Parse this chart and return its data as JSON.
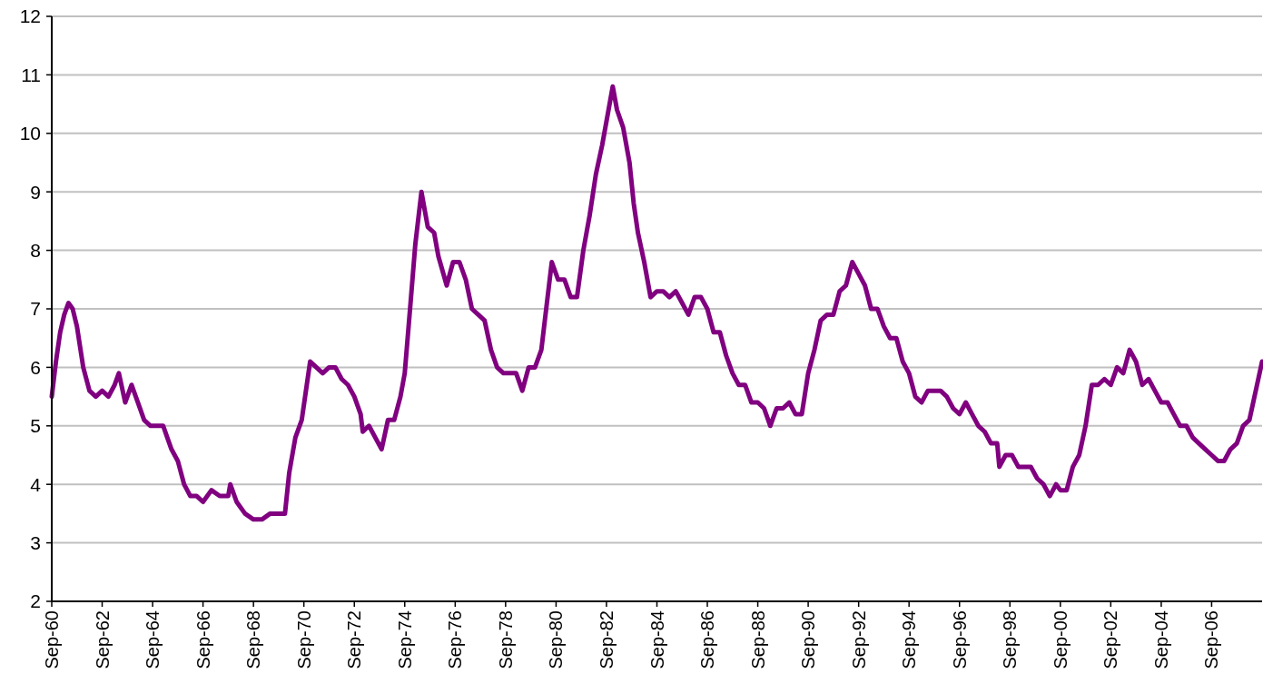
{
  "chart_data": {
    "type": "line",
    "series": [
      {
        "color": "#800080",
        "x": [
          "1960-09",
          "1960-11",
          "1961-01",
          "1961-03",
          "1961-05",
          "1961-07",
          "1961-09",
          "1961-12",
          "1962-03",
          "1962-06",
          "1962-09",
          "1962-12",
          "1963-03",
          "1963-05",
          "1963-08",
          "1963-11",
          "1964-02",
          "1964-05",
          "1964-08",
          "1964-11",
          "1965-02",
          "1965-04",
          "1965-06",
          "1965-09",
          "1965-12",
          "1966-03",
          "1966-06",
          "1966-09",
          "1967-01",
          "1967-05",
          "1967-09",
          "1967-10",
          "1968-01",
          "1968-05",
          "1968-09",
          "1969-01",
          "1969-05",
          "1969-08",
          "1969-12",
          "1970-02",
          "1970-05",
          "1970-08",
          "1970-12",
          "1971-03",
          "1971-06",
          "1971-09",
          "1971-12",
          "1972-03",
          "1972-06",
          "1972-09",
          "1972-12",
          "1973-01",
          "1973-04",
          "1973-07",
          "1973-10",
          "1974-01",
          "1974-04",
          "1974-07",
          "1974-09",
          "1974-12",
          "1975-02",
          "1975-05",
          "1975-08",
          "1975-11",
          "1976-01",
          "1976-05",
          "1976-08",
          "1976-11",
          "1977-02",
          "1977-05",
          "1977-08",
          "1977-11",
          "1978-02",
          "1978-05",
          "1978-08",
          "1978-11",
          "1979-02",
          "1979-05",
          "1979-08",
          "1979-11",
          "1980-02",
          "1980-04",
          "1980-07",
          "1980-10",
          "1981-01",
          "1981-04",
          "1981-07",
          "1981-10",
          "1982-01",
          "1982-04",
          "1982-07",
          "1982-10",
          "1982-12",
          "1983-02",
          "1983-05",
          "1983-08",
          "1983-10",
          "1983-12",
          "1984-03",
          "1984-06",
          "1984-09",
          "1984-12",
          "1985-03",
          "1985-06",
          "1985-09",
          "1985-12",
          "1986-03",
          "1986-06",
          "1986-09",
          "1986-12",
          "1987-03",
          "1987-06",
          "1987-09",
          "1987-12",
          "1988-03",
          "1988-06",
          "1988-09",
          "1988-12",
          "1989-03",
          "1989-06",
          "1989-09",
          "1989-12",
          "1990-03",
          "1990-06",
          "1990-09",
          "1990-12",
          "1991-03",
          "1991-06",
          "1991-09",
          "1991-12",
          "1992-03",
          "1992-06",
          "1992-09",
          "1992-12",
          "1993-03",
          "1993-06",
          "1993-09",
          "1993-12",
          "1994-03",
          "1994-06",
          "1994-09",
          "1994-12",
          "1995-03",
          "1995-06",
          "1995-09",
          "1995-12",
          "1996-03",
          "1996-06",
          "1996-09",
          "1996-12",
          "1997-03",
          "1997-06",
          "1997-09",
          "1997-12",
          "1998-03",
          "1998-04",
          "1998-07",
          "1998-10",
          "1999-01",
          "1999-04",
          "1999-07",
          "1999-10",
          "2000-01",
          "2000-04",
          "2000-07",
          "2000-09",
          "2000-12",
          "2001-03",
          "2001-06",
          "2001-09",
          "2001-12",
          "2002-03",
          "2002-06",
          "2002-09",
          "2002-12",
          "2003-03",
          "2003-06",
          "2003-09",
          "2003-12",
          "2004-03",
          "2004-06",
          "2004-09",
          "2004-12",
          "2005-03",
          "2005-06",
          "2005-09",
          "2005-12",
          "2006-03",
          "2006-06",
          "2006-09",
          "2006-12",
          "2007-03",
          "2007-06",
          "2007-09",
          "2007-12",
          "2008-03",
          "2008-06",
          "2008-09"
        ],
        "values": [
          5.5,
          6.1,
          6.6,
          6.9,
          7.1,
          7.0,
          6.7,
          6.0,
          5.6,
          5.5,
          5.6,
          5.5,
          5.7,
          5.9,
          5.4,
          5.7,
          5.4,
          5.1,
          5.0,
          5.0,
          5.0,
          4.8,
          4.6,
          4.4,
          4.0,
          3.8,
          3.8,
          3.7,
          3.9,
          3.8,
          3.8,
          4.0,
          3.7,
          3.5,
          3.4,
          3.4,
          3.5,
          3.5,
          3.5,
          4.2,
          4.8,
          5.1,
          6.1,
          6.0,
          5.9,
          6.0,
          6.0,
          5.8,
          5.7,
          5.5,
          5.2,
          4.9,
          5.0,
          4.8,
          4.6,
          5.1,
          5.1,
          5.5,
          5.9,
          7.2,
          8.1,
          9.0,
          8.4,
          8.3,
          7.9,
          7.4,
          7.8,
          7.8,
          7.5,
          7.0,
          6.9,
          6.8,
          6.3,
          6.0,
          5.9,
          5.9,
          5.9,
          5.6,
          6.0,
          6.0,
          6.3,
          6.9,
          7.8,
          7.5,
          7.5,
          7.2,
          7.2,
          8.0,
          8.6,
          9.3,
          9.8,
          10.4,
          10.8,
          10.4,
          10.1,
          9.5,
          8.8,
          8.3,
          7.8,
          7.2,
          7.3,
          7.3,
          7.2,
          7.3,
          7.1,
          6.9,
          7.2,
          7.2,
          7.0,
          6.6,
          6.6,
          6.2,
          5.9,
          5.7,
          5.7,
          5.4,
          5.4,
          5.3,
          5.0,
          5.3,
          5.3,
          5.4,
          5.2,
          5.2,
          5.9,
          6.3,
          6.8,
          6.9,
          6.9,
          7.3,
          7.4,
          7.8,
          7.6,
          7.4,
          7.0,
          7.0,
          6.7,
          6.5,
          6.5,
          6.1,
          5.9,
          5.5,
          5.4,
          5.6,
          5.6,
          5.6,
          5.5,
          5.3,
          5.2,
          5.4,
          5.2,
          5.0,
          4.9,
          4.7,
          4.7,
          4.3,
          4.5,
          4.5,
          4.3,
          4.3,
          4.3,
          4.1,
          4.0,
          3.8,
          4.0,
          3.9,
          3.9,
          4.3,
          4.5,
          5.0,
          5.7,
          5.7,
          5.8,
          5.7,
          6.0,
          5.9,
          6.3,
          6.1,
          5.7,
          5.8,
          5.6,
          5.4,
          5.4,
          5.2,
          5.0,
          5.0,
          4.8,
          4.7,
          4.6,
          4.5,
          4.4,
          4.4,
          4.6,
          4.7,
          5.0,
          5.1,
          5.6,
          6.1
        ]
      }
    ],
    "xlim": [
      "1960-09",
      "2008-09"
    ],
    "xticks": [
      {
        "value": "1960-09",
        "label": "Sep-60"
      },
      {
        "value": "1962-09",
        "label": "Sep-62"
      },
      {
        "value": "1964-09",
        "label": "Sep-64"
      },
      {
        "value": "1966-09",
        "label": "Sep-66"
      },
      {
        "value": "1968-09",
        "label": "Sep-68"
      },
      {
        "value": "1970-09",
        "label": "Sep-70"
      },
      {
        "value": "1972-09",
        "label": "Sep-72"
      },
      {
        "value": "1974-09",
        "label": "Sep-74"
      },
      {
        "value": "1976-09",
        "label": "Sep-76"
      },
      {
        "value": "1978-09",
        "label": "Sep-78"
      },
      {
        "value": "1980-09",
        "label": "Sep-80"
      },
      {
        "value": "1982-09",
        "label": "Sep-82"
      },
      {
        "value": "1984-09",
        "label": "Sep-84"
      },
      {
        "value": "1986-09",
        "label": "Sep-86"
      },
      {
        "value": "1988-09",
        "label": "Sep-88"
      },
      {
        "value": "1990-09",
        "label": "Sep-90"
      },
      {
        "value": "1992-09",
        "label": "Sep-92"
      },
      {
        "value": "1994-09",
        "label": "Sep-94"
      },
      {
        "value": "1996-09",
        "label": "Sep-96"
      },
      {
        "value": "1998-09",
        "label": "Sep-98"
      },
      {
        "value": "2000-09",
        "label": "Sep-00"
      },
      {
        "value": "2002-09",
        "label": "Sep-02"
      },
      {
        "value": "2004-09",
        "label": "Sep-04"
      },
      {
        "value": "2006-09",
        "label": "Sep-06"
      }
    ],
    "ylim": [
      2,
      12
    ],
    "yticks": [
      2,
      3,
      4,
      5,
      6,
      7,
      8,
      9,
      10,
      11,
      12
    ],
    "grid": "y",
    "marker": "none",
    "line_style": "solid"
  }
}
